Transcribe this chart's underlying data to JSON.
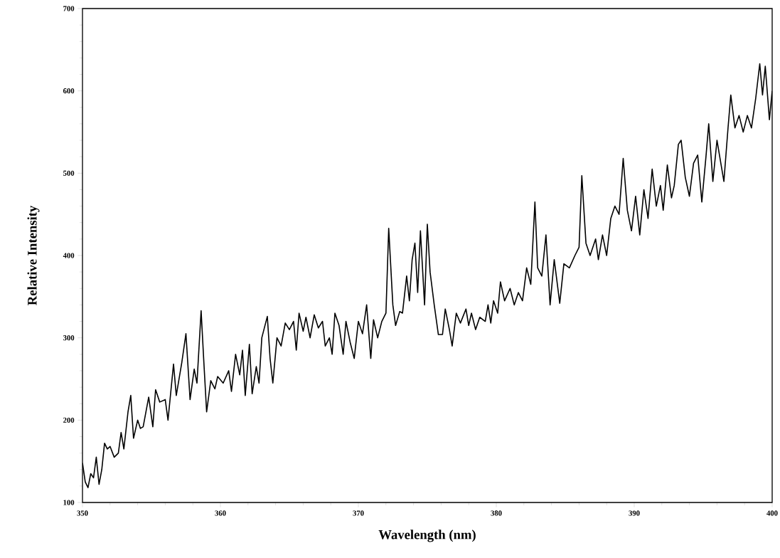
{
  "chart_data": {
    "type": "line",
    "xlabel": "Wavelength (nm)",
    "ylabel": "Relative Intensity",
    "xlim": [
      350,
      400
    ],
    "ylim": [
      100,
      700
    ],
    "xticks": [
      350,
      360,
      370,
      380,
      390,
      400
    ],
    "yticks": [
      100,
      200,
      300,
      400,
      500,
      600,
      700
    ],
    "series": [
      {
        "color": "#000000",
        "x": [
          350.0,
          350.2,
          350.4,
          350.6,
          350.8,
          351.0,
          351.2,
          351.4,
          351.6,
          351.8,
          352.0,
          352.3,
          352.6,
          352.8,
          353.0,
          353.3,
          353.5,
          353.7,
          354.0,
          354.2,
          354.4,
          354.8,
          355.1,
          355.3,
          355.6,
          356.0,
          356.2,
          356.6,
          356.8,
          357.2,
          357.5,
          357.8,
          358.1,
          358.3,
          358.6,
          358.8,
          359.0,
          359.3,
          359.6,
          359.8,
          360.2,
          360.6,
          360.8,
          361.1,
          361.4,
          361.6,
          361.8,
          362.1,
          362.3,
          362.6,
          362.8,
          363.0,
          363.4,
          363.6,
          363.8,
          364.1,
          364.4,
          364.7,
          365.0,
          365.3,
          365.5,
          365.7,
          366.0,
          366.2,
          366.5,
          366.8,
          367.1,
          367.4,
          367.6,
          367.9,
          368.1,
          368.3,
          368.6,
          368.9,
          369.1,
          369.4,
          369.7,
          370.0,
          370.3,
          370.6,
          370.9,
          371.1,
          371.4,
          371.7,
          372.0,
          372.2,
          372.5,
          372.7,
          373.0,
          373.2,
          373.5,
          373.7,
          373.9,
          374.1,
          374.3,
          374.5,
          374.8,
          375.0,
          375.2,
          375.5,
          375.8,
          376.1,
          376.3,
          376.6,
          376.8,
          377.1,
          377.4,
          377.8,
          378.0,
          378.2,
          378.5,
          378.8,
          379.2,
          379.4,
          379.6,
          379.8,
          380.1,
          380.3,
          380.6,
          381.0,
          381.3,
          381.6,
          381.9,
          382.2,
          382.5,
          382.8,
          383.0,
          383.3,
          383.6,
          383.9,
          384.2,
          384.6,
          384.9,
          385.3,
          385.7,
          386.0,
          386.2,
          386.5,
          386.8,
          387.2,
          387.4,
          387.7,
          388.0,
          388.3,
          388.6,
          388.9,
          389.2,
          389.5,
          389.8,
          390.1,
          390.4,
          390.7,
          391.0,
          391.3,
          391.6,
          391.9,
          392.1,
          392.4,
          392.7,
          392.9,
          393.2,
          393.4,
          393.7,
          394.0,
          394.3,
          394.6,
          394.9,
          395.2,
          395.4,
          395.7,
          396.0,
          396.3,
          396.5,
          396.8,
          397.0,
          397.3,
          397.6,
          397.9,
          398.2,
          398.5,
          398.8,
          399.1,
          399.3,
          399.5,
          399.8,
          400.0
        ],
        "values": [
          148,
          125,
          118,
          135,
          130,
          155,
          122,
          140,
          172,
          165,
          168,
          155,
          160,
          185,
          165,
          210,
          230,
          178,
          200,
          190,
          192,
          228,
          192,
          237,
          222,
          225,
          200,
          268,
          230,
          270,
          305,
          225,
          262,
          245,
          333,
          270,
          210,
          248,
          238,
          253,
          245,
          260,
          235,
          280,
          255,
          285,
          230,
          292,
          232,
          265,
          245,
          300,
          326,
          275,
          245,
          300,
          290,
          318,
          310,
          320,
          285,
          330,
          308,
          325,
          300,
          328,
          312,
          320,
          290,
          300,
          280,
          330,
          315,
          280,
          320,
          295,
          275,
          320,
          305,
          340,
          275,
          322,
          300,
          320,
          330,
          433,
          340,
          315,
          332,
          330,
          375,
          345,
          395,
          415,
          355,
          430,
          340,
          438,
          380,
          340,
          304,
          304,
          335,
          310,
          290,
          330,
          318,
          335,
          315,
          330,
          310,
          325,
          320,
          340,
          318,
          345,
          330,
          368,
          345,
          360,
          340,
          355,
          345,
          385,
          365,
          465,
          385,
          375,
          425,
          340,
          395,
          342,
          390,
          385,
          400,
          410,
          497,
          415,
          400,
          420,
          395,
          425,
          400,
          445,
          460,
          450,
          518,
          455,
          430,
          472,
          425,
          480,
          445,
          505,
          460,
          485,
          455,
          510,
          470,
          485,
          535,
          540,
          495,
          472,
          512,
          522,
          465,
          520,
          560,
          490,
          540,
          510,
          490,
          555,
          595,
          555,
          570,
          550,
          570,
          555,
          590,
          633,
          595,
          630,
          565,
          600
        ]
      }
    ]
  }
}
